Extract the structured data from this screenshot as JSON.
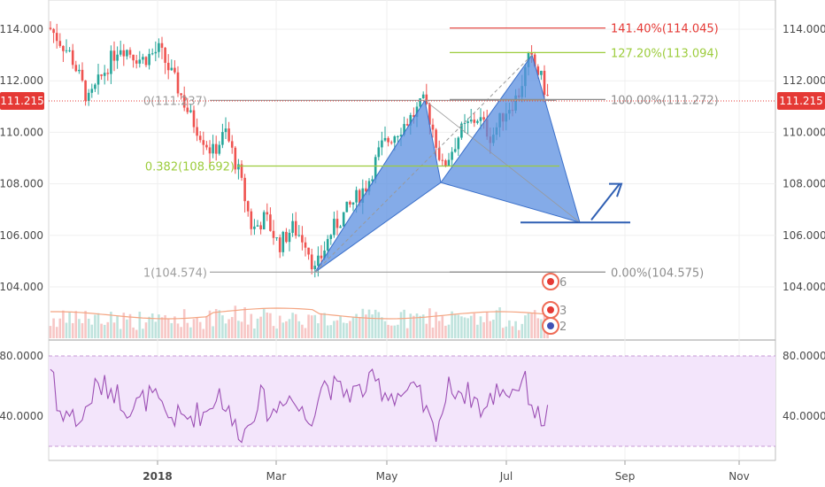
{
  "chart_data": [
    {
      "type": "candlestick",
      "panel": "price",
      "ylim": [
        102.0,
        115.0
      ],
      "y_ticks": [
        "114.000",
        "112.000",
        "110.000",
        "108.000",
        "106.000",
        "104.000"
      ],
      "x_ticks": [
        "2018",
        "Mar",
        "May",
        "Jul",
        "Sep",
        "Nov"
      ],
      "last_price": "111.215",
      "colors": {
        "up": "#26a69a",
        "down": "#ef5350",
        "pattern_fill": "#5b8fe0",
        "pattern_stroke": "#3a6fc9",
        "volume_ma": "#f4a582"
      },
      "fib_levels": [
        {
          "label": "0(111.237)",
          "value": 111.237,
          "color": "#9e9e9e"
        },
        {
          "label": "0.382(108.692)",
          "value": 108.692,
          "color": "#9ccc3c"
        },
        {
          "label": "1(104.574)",
          "value": 104.574,
          "color": "#9e9e9e"
        }
      ],
      "extension_levels": [
        {
          "label": "141.40%(114.045)",
          "value": 114.045,
          "color": "#e53935"
        },
        {
          "label": "127.20%(113.094)",
          "value": 113.094,
          "color": "#9ccc3c"
        },
        {
          "label": "100.00%(111.272)",
          "value": 111.272,
          "color": "#8d8d8d"
        },
        {
          "label": "0.00%(104.575)",
          "value": 104.575,
          "color": "#8d8d8d"
        }
      ],
      "event_badges": [
        "6",
        "3",
        "2"
      ]
    },
    {
      "type": "line",
      "panel": "rsi",
      "ylim": [
        10,
        95
      ],
      "y_ticks": [
        "80.0000",
        "40.0000"
      ],
      "band": [
        20,
        80
      ],
      "colors": {
        "line": "#9c4fb4",
        "band_fill": "#f3e5fb"
      }
    }
  ]
}
